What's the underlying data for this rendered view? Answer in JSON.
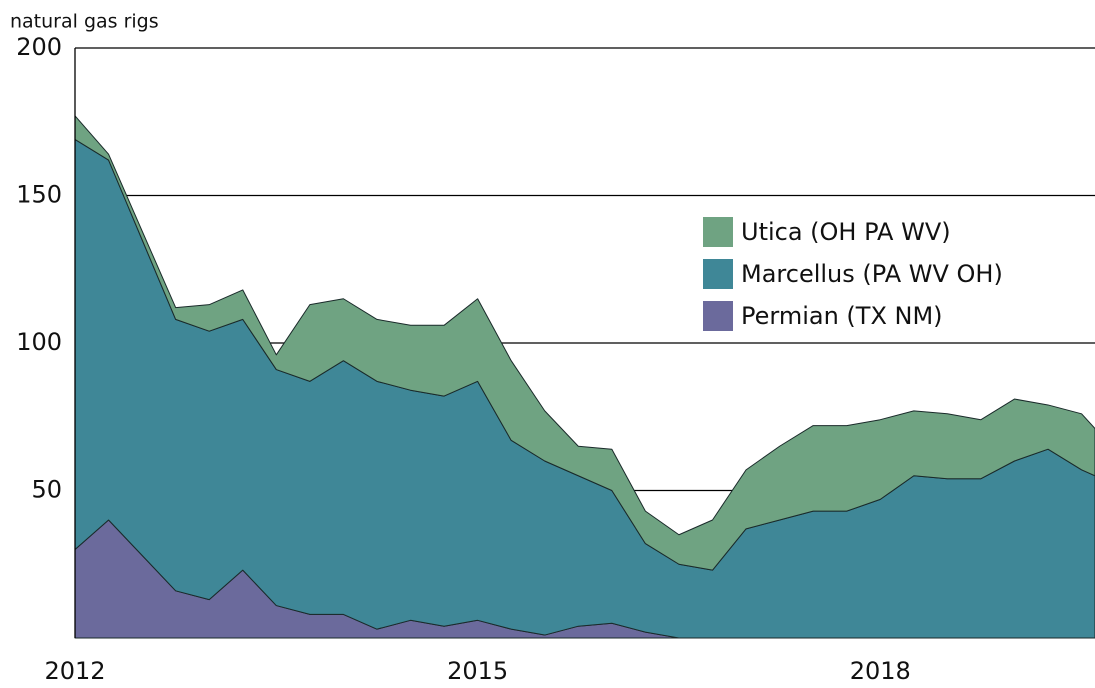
{
  "chart_data": {
    "type": "stacked_area",
    "y_label": "natural gas rigs",
    "x": [
      2012,
      2012.25,
      2012.5,
      2012.75,
      2013,
      2013.25,
      2013.5,
      2013.75,
      2014,
      2014.25,
      2014.5,
      2014.75,
      2015,
      2015.25,
      2015.5,
      2015.75,
      2016,
      2016.25,
      2016.5,
      2016.75,
      2017,
      2017.25,
      2017.5,
      2017.75,
      2018,
      2018.25,
      2018.5,
      2018.75,
      2019,
      2019.25,
      2019.5,
      2019.6
    ],
    "series": [
      {
        "name": "Permian (TX NM)",
        "color": "#6b6a9c",
        "values": [
          30,
          40,
          28,
          16,
          13,
          23,
          11,
          8,
          8,
          3,
          6,
          4,
          6,
          3,
          1,
          4,
          5,
          2,
          0,
          0,
          0,
          0,
          0,
          0,
          0,
          0,
          0,
          0,
          0,
          0,
          0,
          0
        ]
      },
      {
        "name": "Marcellus (PA WV OH)",
        "color": "#3f8797",
        "values": [
          139,
          122,
          107,
          92,
          91,
          85,
          80,
          79,
          86,
          84,
          78,
          78,
          81,
          64,
          59,
          51,
          45,
          30,
          25,
          23,
          37,
          40,
          43,
          43,
          47,
          55,
          54,
          54,
          60,
          64,
          57,
          55
        ]
      },
      {
        "name": "Utica (OH PA WV)",
        "color": "#6fa382",
        "values": [
          8,
          2,
          3,
          4,
          9,
          10,
          5,
          26,
          21,
          21,
          22,
          24,
          28,
          27,
          17,
          10,
          14,
          11,
          10,
          17,
          20,
          25,
          29,
          29,
          27,
          22,
          22,
          20,
          21,
          15,
          19,
          16
        ]
      }
    ],
    "xlim": [
      2012,
      2019.6
    ],
    "xticks": [
      2012,
      2015,
      2018
    ],
    "ylim": [
      0,
      200
    ],
    "yticks": [
      50,
      100,
      150,
      200
    ],
    "grid": true,
    "legend": "right"
  }
}
